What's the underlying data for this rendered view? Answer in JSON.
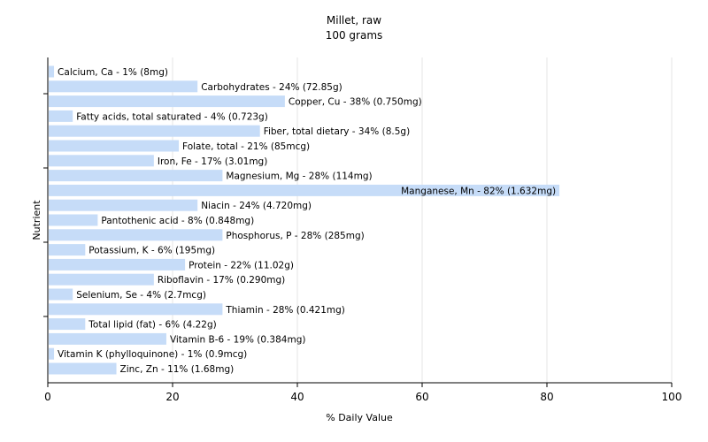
{
  "chart_data": {
    "type": "bar",
    "orientation": "horizontal",
    "title": "Millet, raw",
    "subtitle": "100 grams",
    "xlabel": "% Daily Value",
    "ylabel": "Nutrient",
    "xlim": [
      0,
      100
    ],
    "x_ticks": [
      "0",
      "20",
      "40",
      "60",
      "80",
      "100"
    ],
    "grid": "vertical",
    "bar_color": "#c6dcf8",
    "grid_color": "#e6e6e6",
    "categories": [
      "Calcium, Ca - 1% (8mg)",
      "Carbohydrates - 24% (72.85g)",
      "Copper, Cu - 38% (0.750mg)",
      "Fatty acids, total saturated - 4% (0.723g)",
      "Fiber, total dietary - 34% (8.5g)",
      "Folate, total - 21% (85mcg)",
      "Iron, Fe - 17% (3.01mg)",
      "Magnesium, Mg - 28% (114mg)",
      "Manganese, Mn - 82% (1.632mg)",
      "Niacin - 24% (4.720mg)",
      "Pantothenic acid - 8% (0.848mg)",
      "Phosphorus, P - 28% (285mg)",
      "Potassium, K - 6% (195mg)",
      "Protein - 22% (11.02g)",
      "Riboflavin - 17% (0.290mg)",
      "Selenium, Se - 4% (2.7mcg)",
      "Thiamin - 28% (0.421mg)",
      "Total lipid (fat) - 6% (4.22g)",
      "Vitamin B-6 - 19% (0.384mg)",
      "Vitamin K (phylloquinone) - 1% (0.9mcg)",
      "Zinc, Zn - 11% (1.68mg)"
    ],
    "values": [
      1,
      24,
      38,
      4,
      34,
      21,
      17,
      28,
      82,
      24,
      8,
      28,
      6,
      22,
      17,
      4,
      28,
      6,
      19,
      1,
      11
    ]
  }
}
